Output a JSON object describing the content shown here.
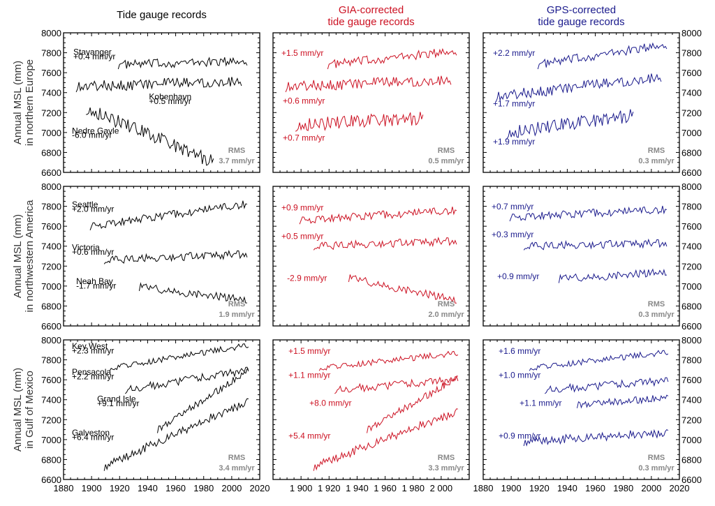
{
  "chart_data": {
    "type": "line",
    "layout": "3x3 grid of small multiples",
    "x_axis": {
      "range": [
        1880,
        2020
      ],
      "ticks": [
        1880,
        1900,
        1920,
        1940,
        1960,
        1980,
        2000,
        2020
      ],
      "middle_ticks": [
        "1 900",
        "1 920",
        "1 940",
        "1 960",
        "1 980",
        "2 000"
      ]
    },
    "y_axis": {
      "range": [
        6600,
        8000
      ],
      "ticks": [
        6600,
        6800,
        7000,
        7200,
        7400,
        7600,
        7800,
        8000
      ]
    },
    "columns": [
      {
        "title": [
          "Tide gauge records"
        ],
        "color": "#000000"
      },
      {
        "title": [
          "GIA-corrected",
          "tide gauge records"
        ],
        "color": "#cc1122"
      },
      {
        "title": [
          "GPS-corrected",
          "tide gauge records"
        ],
        "color": "#1a1a8c"
      }
    ],
    "rows": [
      {
        "ylabel": [
          "Annual MSL (mm)",
          "in northern Europe"
        ]
      },
      {
        "ylabel": [
          "Annual MSL (mm)",
          "in northwestern America"
        ]
      },
      {
        "ylabel": [
          "Annual MSL (mm)",
          "in Gulf of Mexico"
        ]
      }
    ],
    "rms_label": "RMS",
    "panels": [
      {
        "row": 0,
        "col": 0,
        "rms": "3.7 mm/yr",
        "series": [
          {
            "station": "Stavanger",
            "rate": "+0.4 mm/yr",
            "start": 1919,
            "end": 2011,
            "base": 7680,
            "trend": 0.4,
            "noise": 45
          },
          {
            "station": "Kobenhavn",
            "rate": "+0.5 mm/yr",
            "start": 1889,
            "end": 2007,
            "base": 7460,
            "trend": 0.5,
            "noise": 55
          },
          {
            "station": "Nedre Gavle",
            "rate": "-6.0 mm/yr",
            "start": 1896,
            "end": 1987,
            "base": 7250,
            "trend": -6.0,
            "noise": 70
          }
        ]
      },
      {
        "row": 0,
        "col": 1,
        "rms": "0.5 mm/yr",
        "series": [
          {
            "rate": "+1.5 mm/yr",
            "start": 1919,
            "end": 2011,
            "base": 7680,
            "trend": 1.5,
            "noise": 45
          },
          {
            "rate": "+0.6 mm/yr",
            "start": 1889,
            "end": 2007,
            "base": 7460,
            "trend": 0.6,
            "noise": 55
          },
          {
            "rate": "+0.7 mm/yr",
            "start": 1896,
            "end": 1987,
            "base": 7080,
            "trend": 0.7,
            "noise": 70
          }
        ]
      },
      {
        "row": 0,
        "col": 2,
        "rms": "0.3 mm/yr",
        "series": [
          {
            "rate": "+2.2 mm/yr",
            "start": 1919,
            "end": 2011,
            "base": 7680,
            "trend": 2.2,
            "noise": 45
          },
          {
            "rate": "+1.7 mm/yr",
            "start": 1889,
            "end": 2007,
            "base": 7360,
            "trend": 1.7,
            "noise": 55
          },
          {
            "rate": "+1.9 mm/yr",
            "start": 1896,
            "end": 1987,
            "base": 7000,
            "trend": 1.9,
            "noise": 70
          }
        ]
      },
      {
        "row": 1,
        "col": 0,
        "rms": "1.9 mm/yr",
        "series": [
          {
            "station": "Seattle",
            "rate": "+2.0 mm/yr",
            "start": 1899,
            "end": 2011,
            "base": 7600,
            "trend": 2.0,
            "noise": 40
          },
          {
            "station": "Victoria",
            "rate": "+0.6 mm/yr",
            "start": 1909,
            "end": 2011,
            "base": 7260,
            "trend": 0.6,
            "noise": 40
          },
          {
            "station": "Neah Bay",
            "rate": "-1.7 mm/yr",
            "start": 1934,
            "end": 2011,
            "base": 6990,
            "trend": -1.7,
            "noise": 40
          }
        ]
      },
      {
        "row": 1,
        "col": 1,
        "rms": "2.0 mm/yr",
        "series": [
          {
            "rate": "+0.9 mm/yr",
            "start": 1899,
            "end": 2011,
            "base": 7660,
            "trend": 0.9,
            "noise": 40
          },
          {
            "rate": "+0.5 mm/yr",
            "start": 1909,
            "end": 2011,
            "base": 7400,
            "trend": 0.5,
            "noise": 40
          },
          {
            "rate": "-2.9 mm/yr",
            "start": 1934,
            "end": 2011,
            "base": 7080,
            "trend": -2.9,
            "noise": 40
          }
        ]
      },
      {
        "row": 1,
        "col": 2,
        "rms": "0.3 mm/yr",
        "series": [
          {
            "rate": "+0.7 mm/yr",
            "start": 1899,
            "end": 2011,
            "base": 7690,
            "trend": 0.7,
            "noise": 40
          },
          {
            "rate": "+0.3 mm/yr",
            "start": 1909,
            "end": 2011,
            "base": 7400,
            "trend": 0.3,
            "noise": 40
          },
          {
            "rate": "+0.9 mm/yr",
            "start": 1934,
            "end": 2011,
            "base": 7070,
            "trend": 0.9,
            "noise": 40
          }
        ]
      },
      {
        "row": 2,
        "col": 0,
        "rms": "3.4 mm/yr",
        "series": [
          {
            "station": "Key West",
            "rate": "+2.3 mm/yr",
            "start": 1913,
            "end": 2012,
            "base": 7720,
            "trend": 2.3,
            "noise": 30
          },
          {
            "station": "Pensacola",
            "rate": "+2.2 mm/yr",
            "start": 1924,
            "end": 2012,
            "base": 7500,
            "trend": 2.2,
            "noise": 40
          },
          {
            "station": "Grand Isle",
            "rate": "+9.1 mm/yr",
            "start": 1947,
            "end": 2012,
            "base": 7100,
            "trend": 9.1,
            "noise": 35
          },
          {
            "station": "Galveston",
            "rate": "+6.4 mm/yr",
            "start": 1909,
            "end": 2012,
            "base": 6730,
            "trend": 6.4,
            "noise": 45
          }
        ]
      },
      {
        "row": 2,
        "col": 1,
        "rms": "3.3 mm/yr",
        "series": [
          {
            "rate": "+1.5 mm/yr",
            "start": 1913,
            "end": 2012,
            "base": 7720,
            "trend": 1.5,
            "noise": 30
          },
          {
            "rate": "+1.1 mm/yr",
            "start": 1924,
            "end": 2012,
            "base": 7500,
            "trend": 1.1,
            "noise": 40
          },
          {
            "rate": "+8.0 mm/yr",
            "start": 1947,
            "end": 2012,
            "base": 7100,
            "trend": 8.0,
            "noise": 35
          },
          {
            "rate": "+5.4 mm/yr",
            "start": 1909,
            "end": 2012,
            "base": 6730,
            "trend": 5.4,
            "noise": 45
          }
        ]
      },
      {
        "row": 2,
        "col": 2,
        "rms": "0.3 mm/yr",
        "series": [
          {
            "rate": "+1.6 mm/yr",
            "start": 1913,
            "end": 2012,
            "base": 7720,
            "trend": 1.6,
            "noise": 30
          },
          {
            "rate": "+1.0 mm/yr",
            "start": 1924,
            "end": 2012,
            "base": 7500,
            "trend": 1.0,
            "noise": 40
          },
          {
            "rate": "+1.1 mm/yr",
            "start": 1947,
            "end": 2012,
            "base": 7350,
            "trend": 1.1,
            "noise": 35
          },
          {
            "rate": "+0.9 mm/yr",
            "start": 1909,
            "end": 2012,
            "base": 6980,
            "trend": 0.9,
            "noise": 45
          }
        ]
      }
    ],
    "label_years": {
      "0": [
        [
          1887,
          7780,
          7735
        ],
        [
          1941,
          7330,
          7285
        ],
        [
          1886,
          6990,
          6945
        ]
      ],
      "1": [
        [
          1886,
          7770
        ],
        [
          1887,
          7290
        ],
        [
          1887,
          6920
        ]
      ],
      "2": [
        [
          1887,
          7770
        ],
        [
          1887,
          7260
        ],
        [
          1887,
          6880
        ]
      ],
      "3": [
        [
          1886,
          7790,
          7745
        ],
        [
          1886,
          7360,
          7315
        ],
        [
          1889,
          7020,
          6975
        ]
      ],
      "4": [
        [
          1886,
          7760
        ],
        [
          1886,
          7470
        ],
        [
          1890,
          7050
        ]
      ],
      "5": [
        [
          1886,
          7770
        ],
        [
          1886,
          7490
        ],
        [
          1890,
          7070
        ]
      ],
      "6": [
        [
          1886,
          7910,
          7865
        ],
        [
          1886,
          7650,
          7605
        ],
        [
          1904,
          7380,
          7335
        ],
        [
          1886,
          7040,
          6995
        ]
      ],
      "7": [
        [
          1891,
          7860
        ],
        [
          1891,
          7620
        ],
        [
          1906,
          7340
        ],
        [
          1891,
          7010
        ]
      ],
      "8": [
        [
          1891,
          7860
        ],
        [
          1891,
          7620
        ],
        [
          1906,
          7340
        ],
        [
          1891,
          7010
        ]
      ]
    }
  }
}
